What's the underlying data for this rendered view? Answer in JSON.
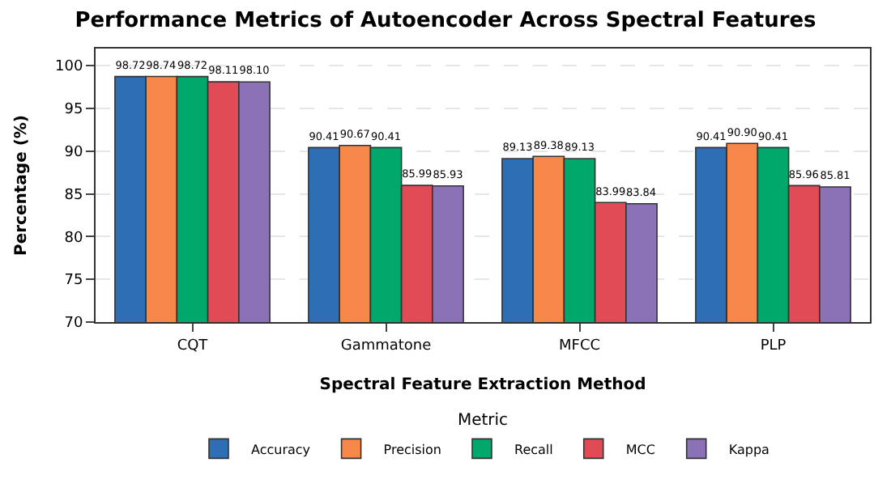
{
  "chart_data": {
    "type": "bar",
    "title": "Performance Metrics of Autoencoder Across Spectral Features",
    "xlabel": "Spectral Feature Extraction Method",
    "ylabel": "Percentage (%)",
    "legend_title": "Metric",
    "categories": [
      "CQT",
      "Gammatone",
      "MFCC",
      "PLP"
    ],
    "series": [
      {
        "name": "Accuracy",
        "color": "#2e6eb5",
        "values": [
          98.72,
          90.41,
          89.13,
          90.41
        ],
        "value_labels": [
          "98.72",
          "90.41",
          "89.13",
          "90.41"
        ]
      },
      {
        "name": "Precision",
        "color": "#f7884a",
        "values": [
          98.74,
          90.67,
          89.38,
          90.9
        ],
        "value_labels": [
          "98.74",
          "90.67",
          "89.38",
          "90.90"
        ]
      },
      {
        "name": "Recall",
        "color": "#00a86b",
        "values": [
          98.72,
          90.41,
          89.13,
          90.41
        ],
        "value_labels": [
          "98.72",
          "90.41",
          "89.13",
          "90.41"
        ]
      },
      {
        "name": "MCC",
        "color": "#e04b55",
        "values": [
          98.11,
          85.99,
          83.99,
          85.96
        ],
        "value_labels": [
          "98.11",
          "85.99",
          "83.99",
          "85.96"
        ]
      },
      {
        "name": "Kappa",
        "color": "#8b71b5",
        "values": [
          98.1,
          85.93,
          83.84,
          85.81
        ],
        "value_labels": [
          "98.10",
          "85.93",
          "83.84",
          "85.81"
        ]
      }
    ],
    "ylim": [
      70,
      102
    ],
    "yticks": [
      70,
      75,
      80,
      85,
      90,
      95,
      100
    ],
    "grid": "y",
    "legend": "bottom"
  }
}
